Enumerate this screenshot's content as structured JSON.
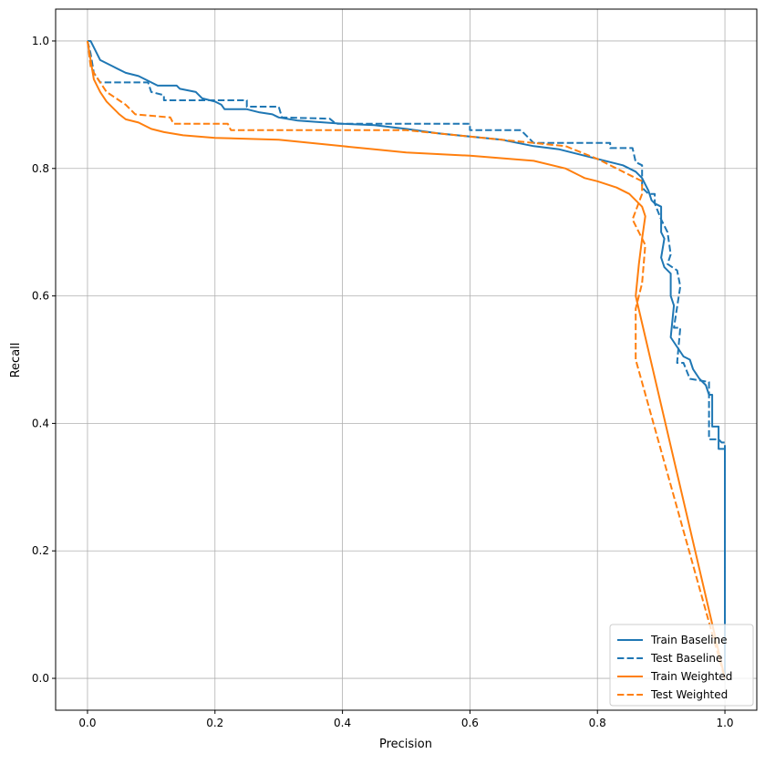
{
  "chart_data": {
    "type": "line",
    "title": "",
    "xlabel": "Precision",
    "ylabel": "Recall",
    "xlim": [
      -0.05,
      1.05
    ],
    "ylim": [
      -0.05,
      1.05
    ],
    "xticks": [
      "0.0",
      "0.2",
      "0.4",
      "0.6",
      "0.8",
      "1.0"
    ],
    "yticks": [
      "0.0",
      "0.2",
      "0.4",
      "0.6",
      "0.8",
      "1.0"
    ],
    "grid": true,
    "legend_position": "bottom-right",
    "series": [
      {
        "name": "Train Baseline",
        "color": "#1f77b4",
        "dash": false,
        "points": [
          [
            0,
            1.0
          ],
          [
            0.005,
            1.0
          ],
          [
            0.01,
            0.99
          ],
          [
            0.02,
            0.97
          ],
          [
            0.04,
            0.96
          ],
          [
            0.06,
            0.95
          ],
          [
            0.08,
            0.945
          ],
          [
            0.1,
            0.935
          ],
          [
            0.11,
            0.93
          ],
          [
            0.14,
            0.93
          ],
          [
            0.145,
            0.925
          ],
          [
            0.17,
            0.92
          ],
          [
            0.18,
            0.91
          ],
          [
            0.2,
            0.905
          ],
          [
            0.21,
            0.9
          ],
          [
            0.215,
            0.893
          ],
          [
            0.25,
            0.893
          ],
          [
            0.27,
            0.888
          ],
          [
            0.29,
            0.885
          ],
          [
            0.3,
            0.88
          ],
          [
            0.33,
            0.875
          ],
          [
            0.36,
            0.873
          ],
          [
            0.4,
            0.87
          ],
          [
            0.45,
            0.868
          ],
          [
            0.5,
            0.862
          ],
          [
            0.55,
            0.855
          ],
          [
            0.6,
            0.85
          ],
          [
            0.65,
            0.845
          ],
          [
            0.7,
            0.835
          ],
          [
            0.74,
            0.83
          ],
          [
            0.78,
            0.82
          ],
          [
            0.82,
            0.81
          ],
          [
            0.84,
            0.805
          ],
          [
            0.86,
            0.795
          ],
          [
            0.87,
            0.785
          ],
          [
            0.875,
            0.775
          ],
          [
            0.88,
            0.765
          ],
          [
            0.885,
            0.75
          ],
          [
            0.89,
            0.745
          ],
          [
            0.9,
            0.74
          ],
          [
            0.9,
            0.7
          ],
          [
            0.905,
            0.69
          ],
          [
            0.9,
            0.66
          ],
          [
            0.905,
            0.645
          ],
          [
            0.915,
            0.635
          ],
          [
            0.915,
            0.6
          ],
          [
            0.92,
            0.585
          ],
          [
            0.915,
            0.535
          ],
          [
            0.925,
            0.52
          ],
          [
            0.935,
            0.505
          ],
          [
            0.945,
            0.5
          ],
          [
            0.95,
            0.485
          ],
          [
            0.96,
            0.47
          ],
          [
            0.97,
            0.46
          ],
          [
            0.975,
            0.445
          ],
          [
            0.98,
            0.445
          ],
          [
            0.98,
            0.395
          ],
          [
            0.99,
            0.395
          ],
          [
            0.99,
            0.36
          ],
          [
            1.0,
            0.36
          ],
          [
            1.0,
            0.0
          ]
        ]
      },
      {
        "name": "Test Baseline",
        "color": "#1f77b4",
        "dash": true,
        "points": [
          [
            0,
            1.0
          ],
          [
            0.005,
            0.98
          ],
          [
            0.01,
            0.95
          ],
          [
            0.02,
            0.935
          ],
          [
            0.095,
            0.935
          ],
          [
            0.1,
            0.92
          ],
          [
            0.12,
            0.915
          ],
          [
            0.12,
            0.907
          ],
          [
            0.25,
            0.907
          ],
          [
            0.25,
            0.897
          ],
          [
            0.3,
            0.897
          ],
          [
            0.305,
            0.88
          ],
          [
            0.38,
            0.878
          ],
          [
            0.39,
            0.87
          ],
          [
            0.6,
            0.87
          ],
          [
            0.6,
            0.86
          ],
          [
            0.68,
            0.86
          ],
          [
            0.69,
            0.85
          ],
          [
            0.7,
            0.84
          ],
          [
            0.82,
            0.84
          ],
          [
            0.82,
            0.832
          ],
          [
            0.855,
            0.832
          ],
          [
            0.86,
            0.81
          ],
          [
            0.87,
            0.805
          ],
          [
            0.87,
            0.77
          ],
          [
            0.88,
            0.76
          ],
          [
            0.89,
            0.76
          ],
          [
            0.89,
            0.745
          ],
          [
            0.9,
            0.72
          ],
          [
            0.91,
            0.7
          ],
          [
            0.915,
            0.665
          ],
          [
            0.91,
            0.65
          ],
          [
            0.925,
            0.64
          ],
          [
            0.93,
            0.615
          ],
          [
            0.92,
            0.55
          ],
          [
            0.93,
            0.55
          ],
          [
            0.925,
            0.495
          ],
          [
            0.935,
            0.495
          ],
          [
            0.945,
            0.47
          ],
          [
            0.975,
            0.465
          ],
          [
            0.975,
            0.375
          ],
          [
            0.99,
            0.375
          ],
          [
            0.995,
            0.37
          ],
          [
            1.0,
            0.37
          ],
          [
            1.0,
            0.0
          ]
        ]
      },
      {
        "name": "Train Weighted",
        "color": "#ff7f0e",
        "dash": false,
        "points": [
          [
            0,
            1.0
          ],
          [
            0.005,
            0.97
          ],
          [
            0.01,
            0.94
          ],
          [
            0.02,
            0.92
          ],
          [
            0.03,
            0.905
          ],
          [
            0.04,
            0.895
          ],
          [
            0.05,
            0.885
          ],
          [
            0.06,
            0.877
          ],
          [
            0.08,
            0.872
          ],
          [
            0.1,
            0.862
          ],
          [
            0.12,
            0.857
          ],
          [
            0.15,
            0.852
          ],
          [
            0.2,
            0.848
          ],
          [
            0.3,
            0.845
          ],
          [
            0.35,
            0.84
          ],
          [
            0.4,
            0.835
          ],
          [
            0.45,
            0.83
          ],
          [
            0.5,
            0.825
          ],
          [
            0.6,
            0.82
          ],
          [
            0.7,
            0.812
          ],
          [
            0.75,
            0.8
          ],
          [
            0.78,
            0.785
          ],
          [
            0.8,
            0.78
          ],
          [
            0.83,
            0.77
          ],
          [
            0.85,
            0.76
          ],
          [
            0.86,
            0.75
          ],
          [
            0.87,
            0.74
          ],
          [
            0.875,
            0.725
          ],
          [
            0.87,
            0.69
          ],
          [
            0.865,
            0.65
          ],
          [
            0.86,
            0.6
          ],
          [
            1.0,
            0.0
          ]
        ]
      },
      {
        "name": "Test Weighted",
        "color": "#ff7f0e",
        "dash": true,
        "points": [
          [
            0,
            1.0
          ],
          [
            0.005,
            0.96
          ],
          [
            0.01,
            0.95
          ],
          [
            0.02,
            0.935
          ],
          [
            0.03,
            0.92
          ],
          [
            0.045,
            0.91
          ],
          [
            0.06,
            0.9
          ],
          [
            0.075,
            0.885
          ],
          [
            0.13,
            0.88
          ],
          [
            0.135,
            0.87
          ],
          [
            0.22,
            0.87
          ],
          [
            0.225,
            0.86
          ],
          [
            0.5,
            0.86
          ],
          [
            0.55,
            0.855
          ],
          [
            0.65,
            0.845
          ],
          [
            0.7,
            0.84
          ],
          [
            0.75,
            0.835
          ],
          [
            0.8,
            0.815
          ],
          [
            0.83,
            0.8
          ],
          [
            0.85,
            0.79
          ],
          [
            0.87,
            0.78
          ],
          [
            0.87,
            0.76
          ],
          [
            0.855,
            0.72
          ],
          [
            0.865,
            0.7
          ],
          [
            0.875,
            0.68
          ],
          [
            0.87,
            0.62
          ],
          [
            0.86,
            0.58
          ],
          [
            0.86,
            0.5
          ],
          [
            0.98,
            0.07
          ],
          [
            1.0,
            0.0
          ]
        ]
      }
    ]
  }
}
